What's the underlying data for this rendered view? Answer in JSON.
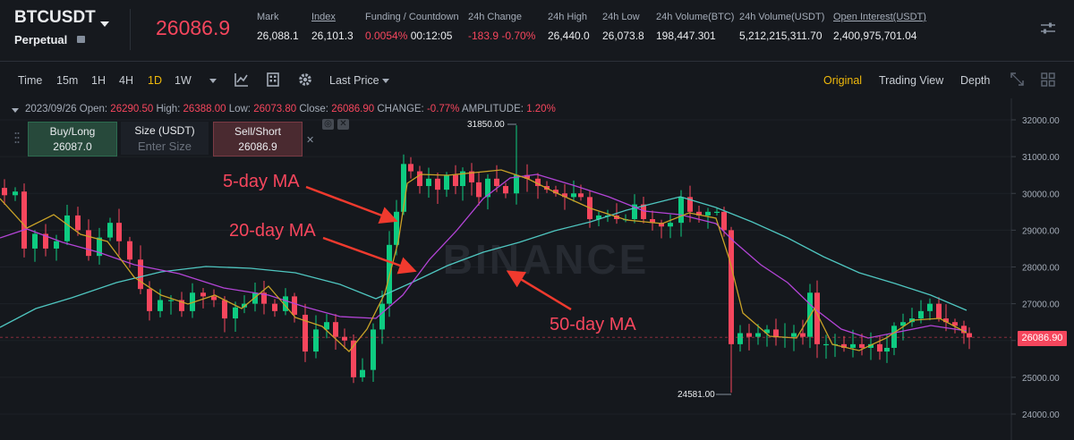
{
  "header": {
    "symbol": "BTCUSDT",
    "contract_type": "Perpetual",
    "last_price": "26086.9",
    "stats": [
      {
        "label": "Mark",
        "value": "26,088.1",
        "underline": false
      },
      {
        "label": "Index",
        "value": "26,101.3",
        "underline": true
      },
      {
        "label": "Funding / Countdown",
        "value_red": "0.0054%",
        "value": "00:12:05",
        "underline": false
      },
      {
        "label": "24h Change",
        "value_red": "-183.9 -0.70%",
        "value": "",
        "underline": false
      },
      {
        "label": "24h High",
        "value": "26,440.0",
        "underline": false
      },
      {
        "label": "24h Low",
        "value": "26,073.8",
        "underline": false
      },
      {
        "label": "24h Volume(BTC)",
        "value": "198,447.301",
        "underline": false
      },
      {
        "label": "24h Volume(USDT)",
        "value": "5,212,215,311.70",
        "underline": false
      },
      {
        "label": "Open Interest(USDT)",
        "value": "2,400,975,701.04",
        "underline": true
      }
    ]
  },
  "toolbar": {
    "intervals": [
      "Time",
      "15m",
      "1H",
      "4H",
      "1D",
      "1W"
    ],
    "active_interval": "1D",
    "price_type": "Last Price",
    "views": [
      "Original",
      "Trading View",
      "Depth"
    ],
    "active_view": "Original"
  },
  "ohlc": {
    "date": "2023/09/26",
    "open_label": "Open:",
    "open": "26290.50",
    "high_label": "High:",
    "high": "26388.00",
    "low_label": "Low:",
    "low": "26073.80",
    "close_label": "Close:",
    "close": "26086.90",
    "change_label": "CHANGE:",
    "change": "-0.77%",
    "amplitude_label": "AMPLITUDE:",
    "amplitude": "1.20%"
  },
  "trade_panel": {
    "buy_label": "Buy/Long",
    "buy_price": "26087.0",
    "size_label": "Size (USDT)",
    "size_placeholder": "Enter Size",
    "sell_label": "Sell/Short",
    "sell_price": "26086.9"
  },
  "annotations": {
    "ma5": "5-day MA",
    "ma20": "20-day MA",
    "ma50": "50-day MA"
  },
  "watermark": "BINANCE",
  "chart_data": {
    "type": "candlestick",
    "y_axis_ticks": [
      "32000.00",
      "31000.00",
      "30000.00",
      "29000.00",
      "28000.00",
      "27000.00",
      "26000.00",
      "25000.00",
      "24000.00"
    ],
    "ylim": [
      23700,
      32500
    ],
    "last_price_tag": "26086.90",
    "high_marker": "31850.00",
    "low_marker": "24581.00",
    "colors": {
      "up": "#0ecb81",
      "down": "#f6465d",
      "ma5": "#c9a227",
      "ma20": "#b344d6",
      "ma50": "#4fc6c0"
    }
  }
}
